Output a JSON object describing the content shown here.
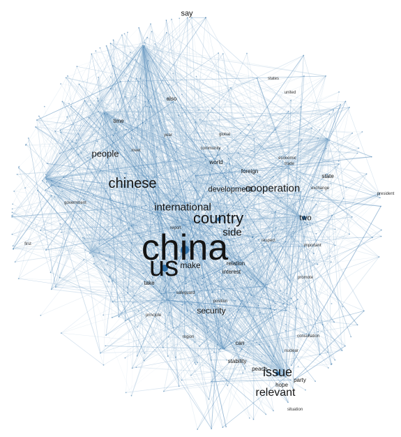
{
  "words": {
    "china": "china",
    "us": "us",
    "country": "country",
    "international": "international",
    "chinese": "chinese",
    "issue": "issue",
    "relevant": "relevant",
    "cooperation": "cooperation",
    "side": "side",
    "make": "make",
    "people": "people",
    "security": "security",
    "development": "development",
    "say": "say",
    "also": "also",
    "time": "time",
    "world": "world",
    "foreign": "foreign",
    "state": "state",
    "two": "two",
    "relation": "relation",
    "interest": "interest",
    "take": "take",
    "can": "can",
    "stability": "stability",
    "peace": "peace",
    "region": "region",
    "principle": "principle",
    "position": "position",
    "hope": "hope",
    "party": "party",
    "situation": "situation",
    "government": "government",
    "united": "united",
    "states": "states",
    "economic": "economic",
    "trade": "trade",
    "exchange": "exchange",
    "community": "community",
    "global": "global",
    "year": "year",
    "meet": "meet",
    "promote": "promote",
    "respect": "respect",
    "report": "report",
    "safeguard": "safeguard",
    "nuclear": "nuclear",
    "consultation": "consultation",
    "important": "important",
    "president": "president",
    "first": "first"
  },
  "colors": {
    "edge": "#3d7bb0",
    "edge_light": "#a9c6dd",
    "node": "#2f6fa6",
    "text": "#141414"
  }
}
